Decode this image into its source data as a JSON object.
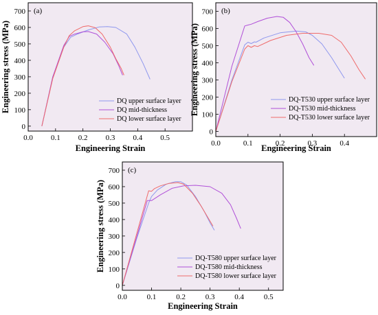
{
  "colors": {
    "upper": "#8e97ee",
    "mid": "#b04fd8",
    "lower": "#ef6a6a"
  },
  "chart_data": [
    {
      "type": "line",
      "panel": "(a)",
      "title": "",
      "xlabel": "Engineering Strain",
      "ylabel": "Engineering stress (MPa)",
      "xlim": [
        0.0,
        0.6
      ],
      "ylim": [
        -30,
        750
      ],
      "xticks": [
        "0.0",
        "0.1",
        "0.2",
        "0.3",
        "0.4",
        "0.5"
      ],
      "yticks": [
        "0",
        "100",
        "200",
        "300",
        "400",
        "500",
        "600",
        "700"
      ],
      "legend_position": "bottom-right",
      "series": [
        {
          "name": "DQ upper surface layer",
          "color_key": "upper",
          "x": [
            0.05,
            0.09,
            0.13,
            0.155,
            0.18,
            0.22,
            0.26,
            0.29,
            0.32,
            0.36,
            0.39,
            0.42,
            0.445
          ],
          "y": [
            0,
            300,
            480,
            540,
            560,
            585,
            603,
            605,
            600,
            560,
            480,
            380,
            285
          ]
        },
        {
          "name": "DQ mid-thickness",
          "color_key": "mid",
          "x": [
            0.05,
            0.09,
            0.13,
            0.15,
            0.17,
            0.2,
            0.22,
            0.25,
            0.28,
            0.31,
            0.33,
            0.345
          ],
          "y": [
            0,
            300,
            490,
            545,
            560,
            573,
            575,
            560,
            510,
            440,
            370,
            310
          ]
        },
        {
          "name": "DQ lower surface layer",
          "color_key": "lower",
          "x": [
            0.05,
            0.09,
            0.13,
            0.15,
            0.17,
            0.2,
            0.22,
            0.245,
            0.27,
            0.3,
            0.32,
            0.34,
            0.35
          ],
          "y": [
            0,
            290,
            480,
            550,
            580,
            605,
            610,
            598,
            560,
            480,
            410,
            350,
            310
          ]
        }
      ]
    },
    {
      "type": "line",
      "panel": "(b)",
      "title": "",
      "xlabel": "Engineering Strain",
      "ylabel": "Engineering stress (MPa)",
      "xlim": [
        0.0,
        0.5
      ],
      "ylim": [
        -30,
        750
      ],
      "xticks": [
        "0.0",
        "0.1",
        "0.2",
        "0.3",
        "0.4"
      ],
      "yticks": [
        "0",
        "100",
        "200",
        "300",
        "400",
        "500",
        "600",
        "700"
      ],
      "legend_position": "bottom-right",
      "series": [
        {
          "name": "DQ-T530 upper surface layer",
          "color_key": "upper",
          "x": [
            0.0,
            0.05,
            0.09,
            0.1,
            0.11,
            0.12,
            0.125,
            0.15,
            0.2,
            0.25,
            0.28,
            0.3,
            0.33,
            0.36,
            0.38,
            0.4
          ],
          "y": [
            0,
            300,
            505,
            520,
            512,
            522,
            520,
            545,
            575,
            585,
            580,
            560,
            510,
            430,
            370,
            310
          ]
        },
        {
          "name": "DQ-T530 mid-thickness",
          "color_key": "mid",
          "x": [
            0.0,
            0.05,
            0.09,
            0.1,
            0.11,
            0.13,
            0.16,
            0.19,
            0.21,
            0.23,
            0.25,
            0.27,
            0.29,
            0.305
          ],
          "y": [
            0,
            380,
            615,
            620,
            625,
            640,
            660,
            670,
            665,
            635,
            580,
            510,
            430,
            385
          ]
        },
        {
          "name": "DQ-T530 lower surface layer",
          "color_key": "lower",
          "x": [
            0.0,
            0.05,
            0.09,
            0.1,
            0.11,
            0.12,
            0.13,
            0.17,
            0.22,
            0.27,
            0.32,
            0.36,
            0.39,
            0.42,
            0.445,
            0.465
          ],
          "y": [
            0,
            290,
            480,
            500,
            490,
            500,
            495,
            530,
            560,
            572,
            572,
            560,
            520,
            440,
            360,
            305
          ]
        }
      ]
    },
    {
      "type": "line",
      "panel": "(c)",
      "title": "",
      "xlabel": "Engineering Strain",
      "ylabel": "Engineering stress (MPa)",
      "xlim": [
        0.0,
        0.55
      ],
      "ylim": [
        -30,
        750
      ],
      "xticks": [
        "0.0",
        "0.1",
        "0.2",
        "0.3",
        "0.4",
        "0.5"
      ],
      "yticks": [
        "0",
        "100",
        "200",
        "300",
        "400",
        "500",
        "600",
        "700"
      ],
      "legend_position": "bottom-right",
      "series": [
        {
          "name": "DQ-T580 upper surface layer",
          "color_key": "upper",
          "x": [
            0.0,
            0.05,
            0.09,
            0.1,
            0.12,
            0.15,
            0.18,
            0.2,
            0.22,
            0.25,
            0.28,
            0.3,
            0.315
          ],
          "y": [
            0,
            290,
            500,
            540,
            580,
            615,
            630,
            630,
            610,
            540,
            450,
            380,
            335
          ]
        },
        {
          "name": "DQ-T580 mid-thickness",
          "color_key": "mid",
          "x": [
            0.0,
            0.05,
            0.085,
            0.1,
            0.13,
            0.17,
            0.21,
            0.25,
            0.3,
            0.34,
            0.37,
            0.39,
            0.405
          ],
          "y": [
            0,
            300,
            515,
            515,
            550,
            590,
            605,
            608,
            600,
            560,
            490,
            410,
            345
          ]
        },
        {
          "name": "DQ-T580 lower surface layer",
          "color_key": "lower",
          "x": [
            0.0,
            0.05,
            0.09,
            0.1,
            0.11,
            0.13,
            0.16,
            0.19,
            0.21,
            0.24,
            0.27,
            0.29,
            0.31
          ],
          "y": [
            0,
            320,
            575,
            572,
            588,
            605,
            620,
            625,
            615,
            560,
            480,
            420,
            360
          ]
        }
      ]
    }
  ]
}
